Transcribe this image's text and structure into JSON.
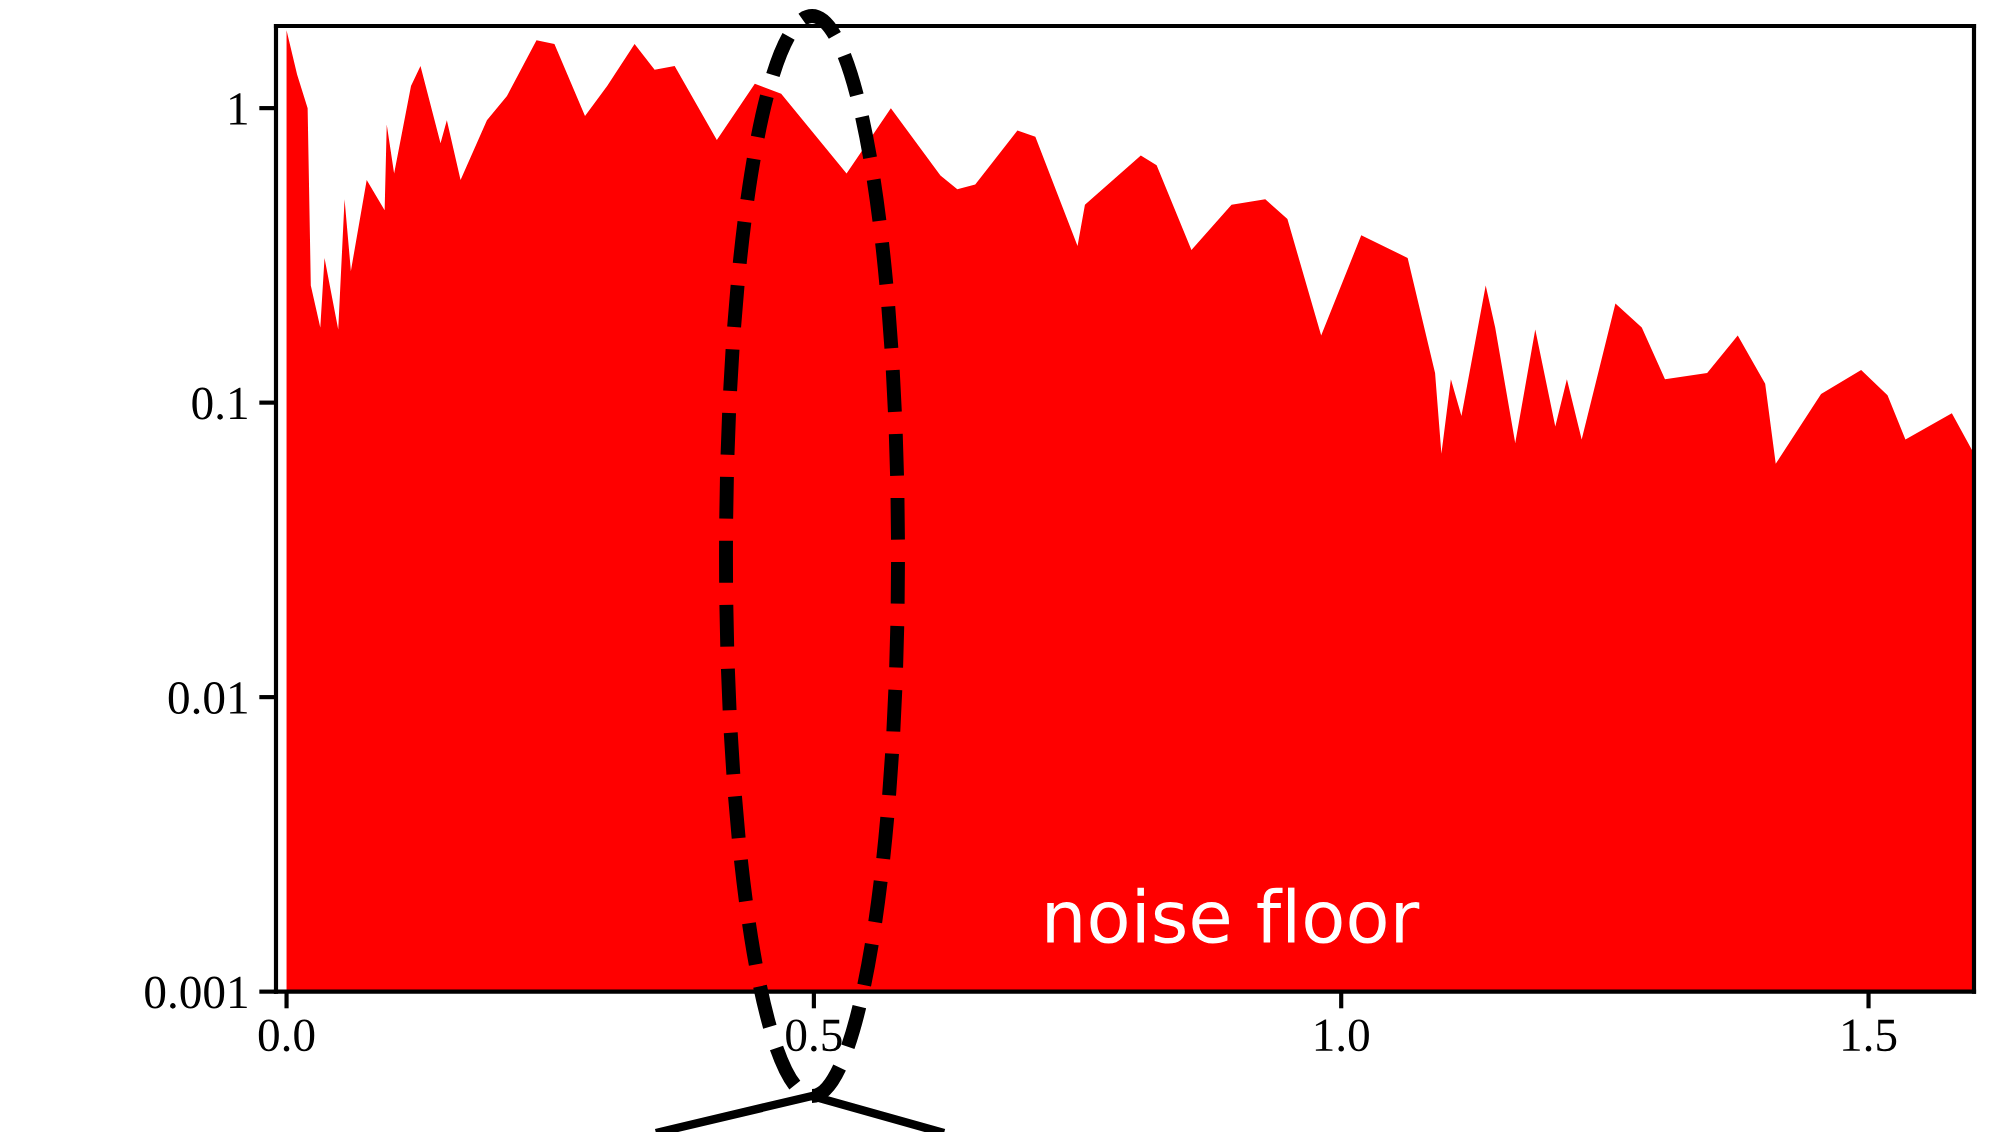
{
  "chart_data": {
    "type": "area",
    "log": "y",
    "grid": false,
    "x": [
      0.0,
      0.01,
      0.02,
      0.023,
      0.032,
      0.036,
      0.049,
      0.055,
      0.061,
      0.076,
      0.093,
      0.095,
      0.102,
      0.118,
      0.127,
      0.146,
      0.152,
      0.165,
      0.19,
      0.209,
      0.237,
      0.254,
      0.283,
      0.304,
      0.33,
      0.349,
      0.368,
      0.408,
      0.444,
      0.469,
      0.531,
      0.573,
      0.62,
      0.636,
      0.653,
      0.693,
      0.71,
      0.75,
      0.757,
      0.81,
      0.825,
      0.858,
      0.896,
      0.928,
      0.949,
      0.981,
      1.019,
      1.063,
      1.089,
      1.095,
      1.104,
      1.114,
      1.137,
      1.146,
      1.165,
      1.184,
      1.203,
      1.214,
      1.228,
      1.26,
      1.285,
      1.307,
      1.347,
      1.376,
      1.402,
      1.412,
      1.455,
      1.493,
      1.518,
      1.535,
      1.579,
      1.6
    ],
    "series": [
      {
        "color": "#ff0000",
        "values": [
          1.84,
          1.3,
          1.0,
          0.25,
          0.18,
          0.31,
          0.177,
          0.49,
          0.28,
          0.57,
          0.45,
          0.88,
          0.6,
          1.19,
          1.39,
          0.76,
          0.91,
          0.57,
          0.91,
          1.1,
          1.7,
          1.65,
          0.94,
          1.19,
          1.65,
          1.35,
          1.39,
          0.78,
          1.21,
          1.12,
          0.6,
          1.0,
          0.59,
          0.53,
          0.55,
          0.84,
          0.8,
          0.34,
          0.47,
          0.69,
          0.64,
          0.33,
          0.47,
          0.49,
          0.42,
          0.169,
          0.37,
          0.31,
          0.126,
          0.067,
          0.12,
          0.09,
          0.25,
          0.18,
          0.073,
          0.177,
          0.083,
          0.12,
          0.075,
          0.217,
          0.18,
          0.12,
          0.126,
          0.169,
          0.116,
          0.062,
          0.107,
          0.129,
          0.106,
          0.075,
          0.092,
          0.067
        ]
      }
    ],
    "xlim": [
      -0.01,
      1.6
    ],
    "ylim": [
      0.001,
      1.9
    ],
    "xticks": [
      {
        "value": 0,
        "label": "0.0"
      },
      {
        "value": 0.5,
        "label": "0.5"
      },
      {
        "value": 1,
        "label": "1.0"
      },
      {
        "value": 1.5,
        "label": "1.5"
      }
    ],
    "yticks": [
      {
        "value": 0.001,
        "label": "0.001"
      },
      {
        "value": 0.01,
        "label": "0.01"
      },
      {
        "value": 0.1,
        "label": "0.1"
      },
      {
        "value": 1,
        "label": "1"
      }
    ],
    "annotations": [
      "noise floor"
    ]
  }
}
